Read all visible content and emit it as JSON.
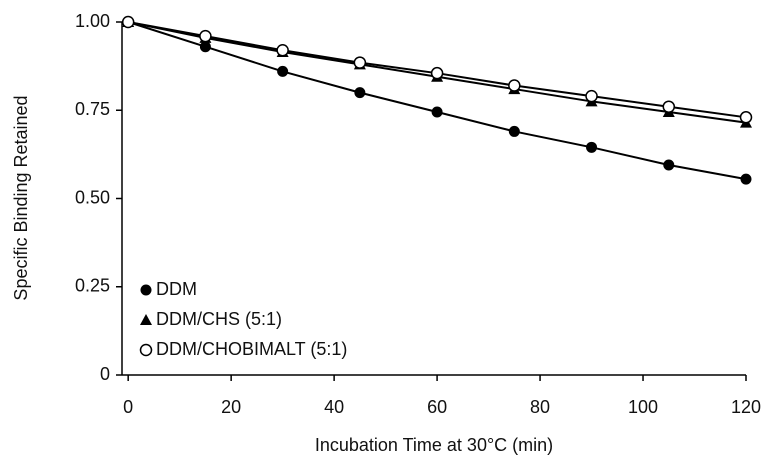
{
  "chart_data": {
    "type": "line",
    "xlabel": "Incubation Time at 30°C (min)",
    "ylabel": "Specific Binding Retained",
    "x": [
      0,
      15,
      30,
      45,
      60,
      75,
      90,
      105,
      120
    ],
    "series": [
      {
        "name": "DDM",
        "color": "#000000",
        "marker": "circle-filled",
        "values": [
          1.0,
          0.93,
          0.86,
          0.8,
          0.745,
          0.69,
          0.645,
          0.595,
          0.555
        ]
      },
      {
        "name": "DDM/CHS (5:1)",
        "color": "#000000",
        "marker": "triangle",
        "values": [
          1.0,
          0.955,
          0.915,
          0.88,
          0.845,
          0.81,
          0.775,
          0.745,
          0.715
        ]
      },
      {
        "name": "DDM/CHOBIMALT (5:1)",
        "color": "#000000",
        "marker": "circle-open",
        "values": [
          1.0,
          0.96,
          0.92,
          0.885,
          0.855,
          0.82,
          0.79,
          0.76,
          0.73
        ]
      }
    ],
    "xlim": [
      -1.2,
      120
    ],
    "xticks": [
      0,
      20,
      40,
      60,
      80,
      100,
      120
    ],
    "ylim": [
      0,
      1
    ],
    "yticks": [
      0,
      0.25,
      {
        "value": 0.5,
        "label": "0.50"
      },
      0.75,
      {
        "value": 1,
        "label": "1.00"
      }
    ],
    "legend": "lower-left"
  }
}
